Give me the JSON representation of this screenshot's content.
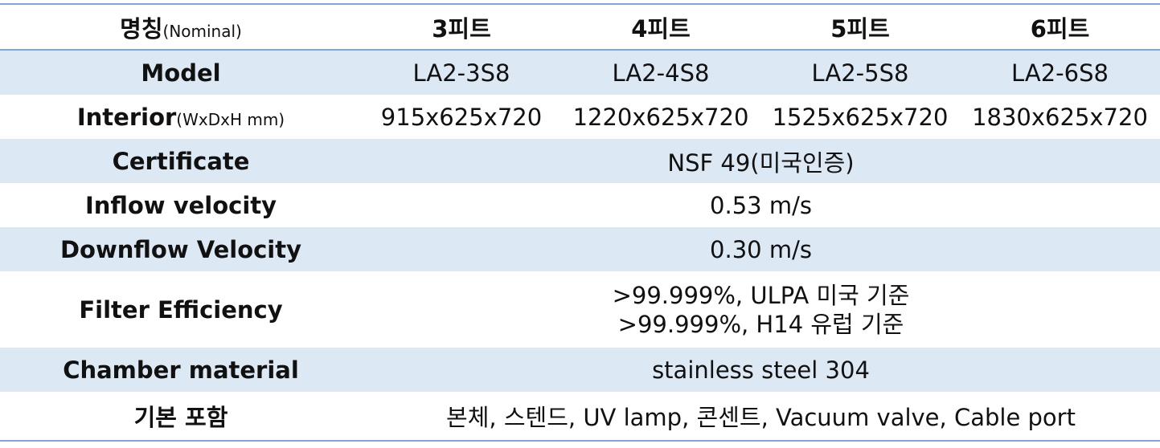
{
  "table": {
    "header": {
      "label": "명칭",
      "label_note": "(Nominal)",
      "columns": [
        "3피트",
        "4피트",
        "5피트",
        "6피트"
      ]
    },
    "rows": [
      {
        "label": "Model",
        "cells": [
          "LA2-3S8",
          "LA2-4S8",
          "LA2-5S8",
          "LA2-6S8"
        ]
      },
      {
        "label": "Interior",
        "label_note": "(WxDxH mm)",
        "cells": [
          "915x625x720",
          "1220x625x720",
          "1525x625x720",
          "1830x625x720"
        ]
      },
      {
        "label": "Certificate",
        "lines": [
          "NSF 49(미국인증)"
        ]
      },
      {
        "label": "Inflow velocity",
        "lines": [
          "0.53 m/s"
        ]
      },
      {
        "label": "Downflow Velocity",
        "lines": [
          "0.30 m/s"
        ]
      },
      {
        "label": "Filter Efficiency",
        "lines": [
          ">99.999%, ULPA 미국 기준",
          ">99.999%, H14 유럽 기준"
        ]
      },
      {
        "label": "Chamber material",
        "lines": [
          "stainless steel 304"
        ]
      },
      {
        "label": "기본 포함",
        "lines": [
          "본체, 스텐드, UV lamp, 콘센트, Vacuum valve, Cable port"
        ]
      }
    ]
  }
}
